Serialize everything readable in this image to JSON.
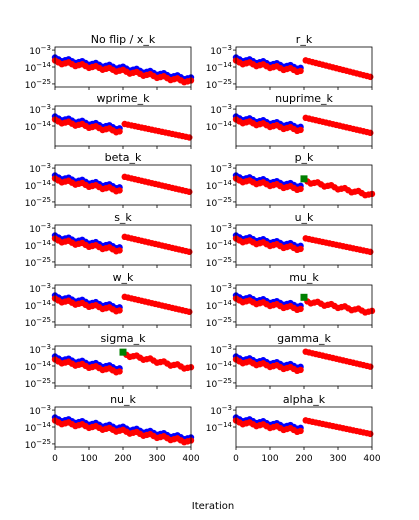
{
  "figure": {
    "xlabel": "Iteration"
  },
  "chart_data": [
    {
      "type": "scatter",
      "title": "No flip / x_k",
      "x_range": [
        0,
        400
      ],
      "y_log_exponents": [
        -3,
        -14,
        -25
      ],
      "series": [
        {
          "color": "#0000ff",
          "points": [
            [
              0,
              -9
            ],
            [
              200,
              -15
            ],
            [
              400,
              -22
            ]
          ]
        },
        {
          "color": "#ff0000",
          "points": [
            [
              0,
              -11
            ],
            [
              200,
              -17
            ],
            [
              400,
              -24
            ]
          ]
        }
      ]
    },
    {
      "type": "scatter",
      "title": "r_k",
      "x_range": [
        0,
        400
      ],
      "y_log_exponents": [
        -3,
        -14,
        -25
      ],
      "series": [
        {
          "color": "#0000ff",
          "points": [
            [
              0,
              -9
            ],
            [
              195,
              -15
            ]
          ]
        },
        {
          "color": "#ff0000",
          "points": [
            [
              0,
              -11
            ],
            [
              195,
              -17
            ],
            [
              205,
              -10
            ],
            [
              400,
              -21
            ]
          ]
        }
      ]
    },
    {
      "type": "scatter",
      "title": "wprime_k",
      "x_range": [
        0,
        400
      ],
      "y_log_exponents": [
        -3,
        -14
      ],
      "series": [
        {
          "color": "#0000ff",
          "points": [
            [
              0,
              -9
            ],
            [
              195,
              -16
            ]
          ]
        },
        {
          "color": "#ff0000",
          "points": [
            [
              0,
              -11
            ],
            [
              195,
              -18
            ],
            [
              205,
              -13
            ],
            [
              400,
              -22
            ]
          ]
        }
      ]
    },
    {
      "type": "scatter",
      "title": "nuprime_k",
      "x_range": [
        0,
        400
      ],
      "y_log_exponents": [
        -3,
        -14
      ],
      "series": [
        {
          "color": "#0000ff",
          "points": [
            [
              0,
              -9
            ],
            [
              195,
              -15
            ]
          ]
        },
        {
          "color": "#ff0000",
          "points": [
            [
              0,
              -11
            ],
            [
              195,
              -17
            ],
            [
              205,
              -9
            ],
            [
              400,
              -19
            ]
          ]
        }
      ]
    },
    {
      "type": "scatter",
      "title": "beta_k",
      "x_range": [
        0,
        400
      ],
      "y_log_exponents": [
        -3,
        -14,
        -25
      ],
      "series": [
        {
          "color": "#0000ff",
          "points": [
            [
              0,
              -9
            ],
            [
              195,
              -16
            ]
          ]
        },
        {
          "color": "#ff0000",
          "points": [
            [
              0,
              -11
            ],
            [
              195,
              -18
            ],
            [
              205,
              -9
            ],
            [
              400,
              -19
            ]
          ]
        }
      ]
    },
    {
      "type": "scatter",
      "title": "p_k",
      "x_range": [
        0,
        400
      ],
      "y_log_exponents": [
        -3,
        -14,
        -25
      ],
      "series": [
        {
          "color": "#0000ff",
          "points": [
            [
              0,
              -9
            ],
            [
              195,
              -15
            ]
          ]
        },
        {
          "color": "#ff0000",
          "points": [
            [
              0,
              -11
            ],
            [
              195,
              -17
            ],
            [
              210,
              -12
            ],
            [
              400,
              -21
            ]
          ]
        },
        {
          "color": "#008000",
          "marker": "square",
          "points": [
            [
              200,
              -10
            ]
          ]
        }
      ]
    },
    {
      "type": "scatter",
      "title": "s_k",
      "x_range": [
        0,
        400
      ],
      "y_log_exponents": [
        -3,
        -14,
        -25
      ],
      "series": [
        {
          "color": "#0000ff",
          "points": [
            [
              0,
              -9
            ],
            [
              195,
              -16
            ]
          ]
        },
        {
          "color": "#ff0000",
          "points": [
            [
              0,
              -11
            ],
            [
              195,
              -18
            ],
            [
              205,
              -9
            ],
            [
              400,
              -19
            ]
          ]
        }
      ]
    },
    {
      "type": "scatter",
      "title": "u_k",
      "x_range": [
        0,
        400
      ],
      "y_log_exponents": [
        -3,
        -14,
        -25
      ],
      "series": [
        {
          "color": "#0000ff",
          "points": [
            [
              0,
              -9
            ],
            [
              195,
              -15
            ]
          ]
        },
        {
          "color": "#ff0000",
          "points": [
            [
              0,
              -11
            ],
            [
              195,
              -17
            ],
            [
              205,
              -10
            ],
            [
              400,
              -19
            ]
          ]
        }
      ]
    },
    {
      "type": "scatter",
      "title": "w_k",
      "x_range": [
        0,
        400
      ],
      "y_log_exponents": [
        -3,
        -14,
        -25
      ],
      "series": [
        {
          "color": "#0000ff",
          "points": [
            [
              0,
              -9
            ],
            [
              195,
              -16
            ]
          ]
        },
        {
          "color": "#ff0000",
          "points": [
            [
              0,
              -11
            ],
            [
              195,
              -18
            ],
            [
              205,
              -9
            ],
            [
              400,
              -19
            ]
          ]
        }
      ]
    },
    {
      "type": "scatter",
      "title": "mu_k",
      "x_range": [
        0,
        400
      ],
      "y_log_exponents": [
        -3,
        -14,
        -25
      ],
      "series": [
        {
          "color": "#0000ff",
          "points": [
            [
              0,
              -9
            ],
            [
              195,
              -15
            ]
          ]
        },
        {
          "color": "#ff0000",
          "points": [
            [
              0,
              -11
            ],
            [
              195,
              -17
            ],
            [
              210,
              -12
            ],
            [
              400,
              -19
            ]
          ]
        },
        {
          "color": "#008000",
          "marker": "square",
          "points": [
            [
              200,
              -9
            ]
          ]
        }
      ]
    },
    {
      "type": "scatter",
      "title": "sigma_k",
      "x_range": [
        0,
        400
      ],
      "y_log_exponents": [
        -3,
        -14,
        -25
      ],
      "series": [
        {
          "color": "#0000ff",
          "points": [
            [
              0,
              -9
            ],
            [
              195,
              -16
            ]
          ]
        },
        {
          "color": "#ff0000",
          "points": [
            [
              0,
              -11
            ],
            [
              195,
              -18
            ],
            [
              210,
              -7
            ],
            [
              400,
              -16
            ]
          ]
        },
        {
          "color": "#008000",
          "marker": "square",
          "points": [
            [
              200,
              -5
            ]
          ]
        }
      ]
    },
    {
      "type": "scatter",
      "title": "gamma_k",
      "x_range": [
        0,
        400
      ],
      "y_log_exponents": [
        -3,
        -14,
        -25
      ],
      "series": [
        {
          "color": "#0000ff",
          "points": [
            [
              0,
              -9
            ],
            [
              195,
              -15
            ]
          ]
        },
        {
          "color": "#ff0000",
          "points": [
            [
              0,
              -11
            ],
            [
              195,
              -17
            ],
            [
              205,
              -5
            ],
            [
              400,
              -15
            ]
          ]
        }
      ]
    },
    {
      "type": "scatter",
      "title": "nu_k",
      "x_range": [
        0,
        400
      ],
      "y_log_exponents": [
        -3,
        -14,
        -25
      ],
      "series": [
        {
          "color": "#0000ff",
          "points": [
            [
              0,
              -9
            ],
            [
              200,
              -15
            ],
            [
              400,
              -22
            ]
          ]
        },
        {
          "color": "#ff0000",
          "points": [
            [
              0,
              -11
            ],
            [
              200,
              -17
            ],
            [
              400,
              -24
            ]
          ]
        }
      ]
    },
    {
      "type": "scatter",
      "title": "alpha_k",
      "x_range": [
        0,
        400
      ],
      "y_log_exponents": [
        -3,
        -14
      ],
      "series": [
        {
          "color": "#0000ff",
          "points": [
            [
              0,
              -9
            ],
            [
              195,
              -15
            ]
          ]
        },
        {
          "color": "#ff0000",
          "points": [
            [
              0,
              -11
            ],
            [
              195,
              -17
            ],
            [
              205,
              -10
            ],
            [
              400,
              -19
            ]
          ]
        }
      ]
    }
  ]
}
